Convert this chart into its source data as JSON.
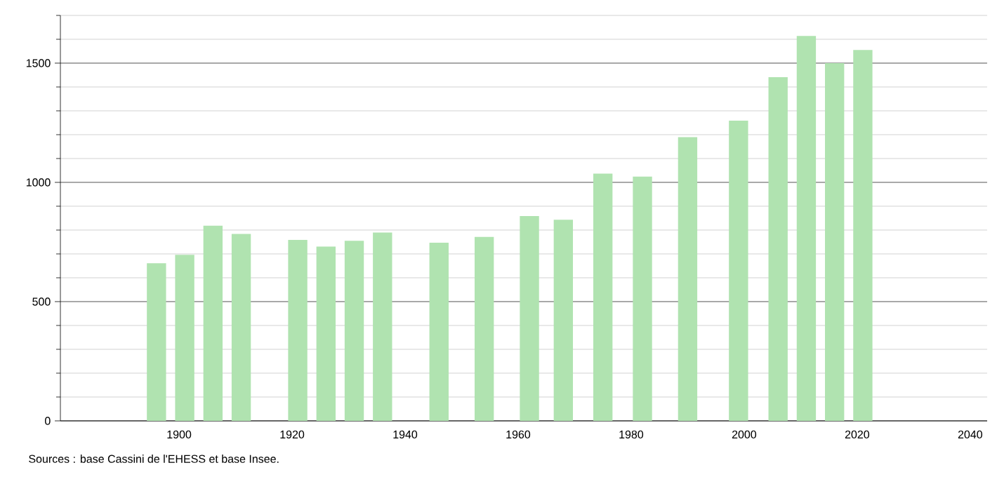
{
  "chart_data": {
    "type": "bar",
    "x": [
      1896,
      1901,
      1906,
      1911,
      1921,
      1926,
      1931,
      1936,
      1946,
      1954,
      1962,
      1968,
      1975,
      1982,
      1990,
      1999,
      2006,
      2011,
      2016,
      2021
    ],
    "values": [
      661,
      696,
      818,
      784,
      759,
      731,
      755,
      790,
      747,
      771,
      859,
      843,
      1037,
      1024,
      1190,
      1259,
      1441,
      1614,
      1500,
      1555
    ],
    "color": "#b0e3b0",
    "xlim": [
      1879,
      2043
    ],
    "xticks": [
      1900,
      1920,
      1940,
      1960,
      1980,
      2000,
      2020,
      2040
    ],
    "ylim": [
      0,
      1700
    ],
    "yticks": [
      0,
      {
        "value": 100,
        "label": null
      },
      {
        "value": 200,
        "label": null
      },
      {
        "value": 300,
        "label": null
      },
      {
        "value": 400,
        "label": null
      },
      500,
      {
        "value": 600,
        "label": null
      },
      {
        "value": 700,
        "label": null
      },
      {
        "value": 800,
        "label": null
      },
      {
        "value": 900,
        "label": null
      },
      1000,
      {
        "value": 1100,
        "label": null
      },
      {
        "value": 1200,
        "label": null
      },
      {
        "value": 1300,
        "label": null
      },
      {
        "value": 1400,
        "label": null
      },
      1500,
      {
        "value": 1600,
        "label": null
      },
      {
        "value": 1700,
        "label": null
      }
    ],
    "grid": "y",
    "annotations": [
      "Sources : base Cassini de l'EHESS et base Insee."
    ]
  }
}
